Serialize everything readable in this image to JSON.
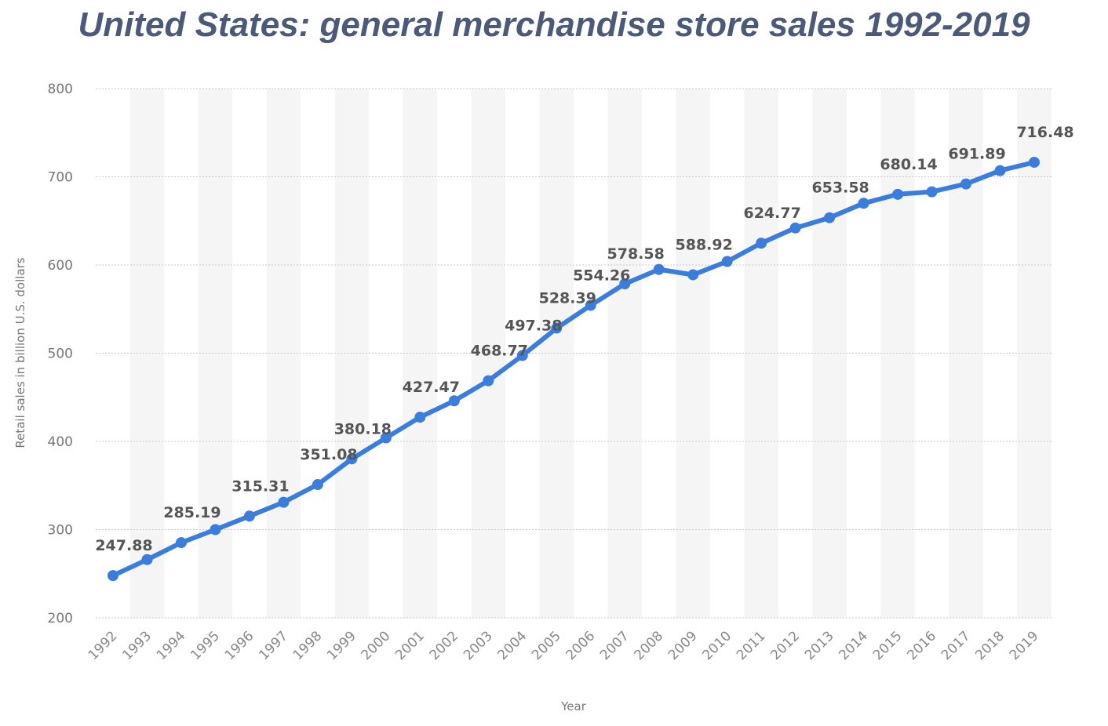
{
  "chart_data": {
    "type": "line",
    "title": "United States: general merchandise store sales 1992-2019",
    "xlabel": "Year",
    "ylabel": "Retail sales in billion U.S. dollars",
    "ylim": [
      200,
      800
    ],
    "yticks": [
      "200",
      "300",
      "400",
      "500",
      "600",
      "700",
      "800"
    ],
    "grid": true,
    "categories": [
      "1992",
      "1993",
      "1994",
      "1995",
      "1996",
      "1997",
      "1998",
      "1999",
      "2000",
      "2001",
      "2002",
      "2003",
      "2004",
      "2005",
      "2006",
      "2007",
      "2008",
      "2009",
      "2010",
      "2011",
      "2012",
      "2013",
      "2014",
      "2015",
      "2016",
      "2017",
      "2018",
      "2019"
    ],
    "values": [
      247.88,
      266,
      285.19,
      300,
      315.31,
      331,
      351.08,
      380.18,
      404,
      427.47,
      446,
      468.77,
      497.38,
      528.39,
      554.26,
      578.58,
      595,
      588.92,
      604,
      624.77,
      642,
      653.58,
      670,
      680.14,
      683,
      691.89,
      707,
      716.48
    ],
    "data_labels": [
      "247.88",
      "",
      "285.19",
      "",
      "315.31",
      "",
      "351.08",
      "380.18",
      "",
      "427.47",
      "",
      "468.77",
      "497.38",
      "528.39",
      "554.26",
      "578.58",
      "",
      "588.92",
      "",
      "624.77",
      "",
      "653.58",
      "",
      "680.14",
      "",
      "691.89",
      "",
      "716.48"
    ],
    "line_color": "#3b7ddd",
    "label_color": "#555555"
  }
}
